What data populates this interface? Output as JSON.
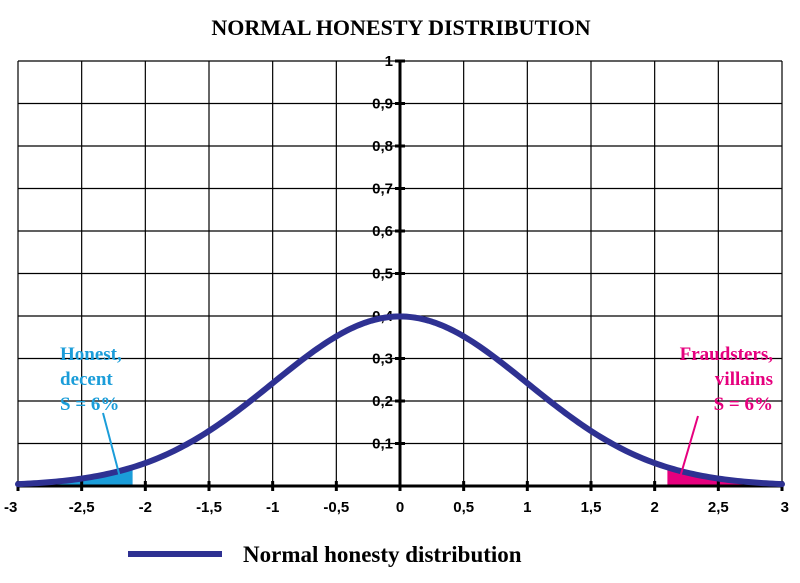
{
  "chart_data": {
    "type": "line",
    "title": "NORMAL HONESTY DISTRIBUTION",
    "xlabel": "",
    "ylabel": "",
    "xlim": [
      -3,
      3
    ],
    "ylim": [
      0,
      1
    ],
    "grid": true,
    "x_ticks": [
      "-3",
      "-2,5",
      "-2",
      "-1,5",
      "-1",
      "-0,5",
      "0",
      "0,5",
      "1",
      "1,5",
      "2",
      "2,5",
      "3"
    ],
    "x_tick_values": [
      -3,
      -2.5,
      -2,
      -1.5,
      -1,
      -0.5,
      0,
      0.5,
      1,
      1.5,
      2,
      2.5,
      3
    ],
    "y_ticks": [
      "0,1",
      "0,2",
      "0,3",
      "0,4",
      "0,5",
      "0,6",
      "0,7",
      "0,8",
      "0,9",
      "1"
    ],
    "y_tick_values": [
      0.1,
      0.2,
      0.3,
      0.4,
      0.5,
      0.6,
      0.7,
      0.8,
      0.9,
      1
    ],
    "series": [
      {
        "name": "Normal honesty distribution",
        "color": "#2e3192",
        "x": [
          -3,
          -2.75,
          -2.5,
          -2.25,
          -2,
          -1.75,
          -1.5,
          -1.25,
          -1,
          -0.75,
          -0.5,
          -0.25,
          0,
          0.25,
          0.5,
          0.75,
          1,
          1.25,
          1.5,
          1.75,
          2,
          2.25,
          2.5,
          2.75,
          3
        ],
        "y": [
          0.0044,
          0.0091,
          0.0175,
          0.0317,
          0.054,
          0.0863,
          0.1295,
          0.1826,
          0.242,
          0.3011,
          0.3521,
          0.3867,
          0.3989,
          0.3867,
          0.3521,
          0.3011,
          0.242,
          0.1826,
          0.1295,
          0.0863,
          0.054,
          0.0317,
          0.0175,
          0.0091,
          0.0044
        ]
      }
    ],
    "shaded_regions": [
      {
        "x_from": -3,
        "x_to": -2.1,
        "color": "#1b9dd9"
      },
      {
        "x_from": 2.1,
        "x_to": 3,
        "color": "#e6007e"
      }
    ],
    "annotations": [
      {
        "lines": [
          "Honest,",
          "decent",
          "S = 6%"
        ],
        "color": "#1b9dd9",
        "align": "left",
        "points_to_x": -2.2
      },
      {
        "lines": [
          "Fraudsters,",
          "villains",
          "S = 6%"
        ],
        "color": "#e6007e",
        "align": "right",
        "points_to_x": 2.2
      }
    ],
    "legend": {
      "position": "bottom",
      "label": "Normal honesty distribution"
    }
  }
}
